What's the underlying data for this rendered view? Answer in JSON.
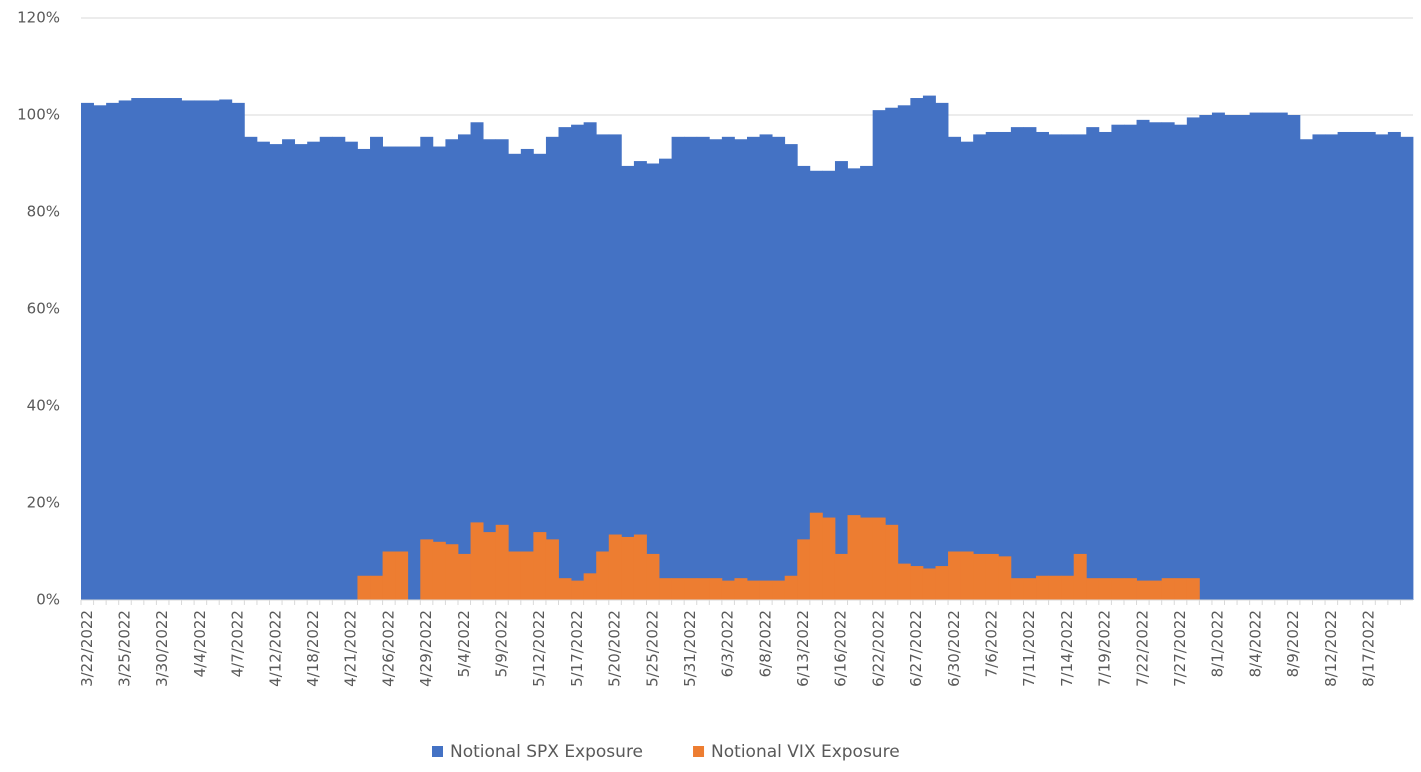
{
  "chart_data": {
    "type": "bar",
    "categories": [
      "3/22/2022",
      null,
      null,
      "3/25/2022",
      null,
      null,
      "3/30/2022",
      null,
      null,
      "4/4/2022",
      null,
      null,
      "4/7/2022",
      null,
      null,
      "4/12/2022",
      null,
      null,
      "4/18/2022",
      null,
      null,
      "4/21/2022",
      null,
      null,
      "4/26/2022",
      null,
      null,
      "4/29/2022",
      null,
      null,
      "5/4/2022",
      null,
      null,
      "5/9/2022",
      null,
      null,
      "5/12/2022",
      null,
      null,
      "5/17/2022",
      null,
      null,
      "5/20/2022",
      null,
      null,
      "5/25/2022",
      null,
      null,
      "5/31/2022",
      null,
      null,
      "6/3/2022",
      null,
      null,
      "6/8/2022",
      null,
      null,
      "6/13/2022",
      null,
      null,
      "6/16/2022",
      null,
      null,
      "6/22/2022",
      null,
      null,
      "6/27/2022",
      null,
      null,
      "6/30/2022",
      null,
      null,
      "7/6/2022",
      null,
      null,
      "7/11/2022",
      null,
      null,
      "7/14/2022",
      null,
      null,
      "7/19/2022",
      null,
      null,
      "7/22/2022",
      null,
      null,
      "7/27/2022",
      null,
      null,
      "8/1/2022",
      null,
      null,
      "8/4/2022",
      null,
      null,
      "8/9/2022",
      null,
      null,
      "8/12/2022",
      null,
      null,
      "8/17/2022",
      null,
      null,
      null
    ],
    "series": [
      {
        "name": "Notional SPX Exposure",
        "color": "#4472c4",
        "values": [
          102.5,
          102,
          102.5,
          103,
          103.5,
          103.5,
          103.5,
          103.5,
          103,
          103,
          103,
          103.2,
          102.5,
          95.5,
          94.5,
          94,
          95,
          94,
          94.5,
          95.5,
          95.5,
          94.5,
          93,
          95.5,
          93.5,
          93.5,
          93.5,
          95.5,
          93.5,
          95,
          96,
          98.5,
          95,
          95,
          92,
          93,
          92,
          95.5,
          97.5,
          98,
          98.5,
          96,
          96,
          89.5,
          90.5,
          90,
          91,
          95.5,
          95.5,
          95.5,
          95,
          95.5,
          95,
          95.5,
          96,
          95.5,
          94,
          89.5,
          88.5,
          88.5,
          90.5,
          89,
          89.5,
          101,
          101.5,
          102,
          103.5,
          104,
          102.5,
          95.5,
          94.5,
          96,
          96.5,
          96.5,
          97.5,
          97.5,
          96.5,
          96,
          96,
          96,
          97.5,
          96.5,
          98,
          98,
          99,
          98.5,
          98.5,
          98,
          99.5,
          100,
          100.5,
          100,
          100,
          100.5,
          100.5,
          100.5,
          100,
          95,
          96,
          96,
          96.5,
          96.5,
          96.5,
          96,
          96.5,
          95.5
        ]
      },
      {
        "name": "Notional VIX Exposure",
        "color": "#ed7d31",
        "values": [
          0,
          0,
          0,
          0,
          0,
          0,
          0,
          0,
          0,
          0,
          0,
          0,
          0,
          0,
          0,
          0,
          0,
          0,
          0,
          0,
          0,
          0,
          5,
          5,
          10,
          10,
          0,
          12.5,
          12,
          11.5,
          9.5,
          16,
          14,
          15.5,
          10,
          10,
          14,
          12.5,
          4.5,
          4,
          5.5,
          10,
          13.5,
          13,
          13.5,
          9.5,
          4.5,
          4.5,
          4.5,
          4.5,
          4.5,
          4,
          4.5,
          4,
          4,
          4,
          5,
          12.5,
          18,
          17,
          9.5,
          17.5,
          17,
          17,
          15.5,
          7.5,
          7,
          6.5,
          7,
          10,
          10,
          9.5,
          9.5,
          9,
          4.5,
          4.5,
          5,
          5,
          5,
          9.5,
          4.5,
          4.5,
          4.5,
          4.5,
          4,
          4,
          4.5,
          4.5,
          4.5,
          0,
          0,
          0,
          0,
          0,
          0,
          0,
          0,
          0,
          0,
          0,
          0,
          0,
          0,
          0,
          0,
          0
        ]
      }
    ],
    "ylim": [
      0,
      120
    ],
    "yticks": [
      {
        "value": 0,
        "label": "0%"
      },
      {
        "value": 20,
        "label": "20%"
      },
      {
        "value": 40,
        "label": "40%"
      },
      {
        "value": 60,
        "label": "60%"
      },
      {
        "value": 80,
        "label": "80%"
      },
      {
        "value": 100,
        "label": "100%"
      },
      {
        "value": 120,
        "label": "120%"
      }
    ],
    "grid": true,
    "legend": "bottom"
  }
}
